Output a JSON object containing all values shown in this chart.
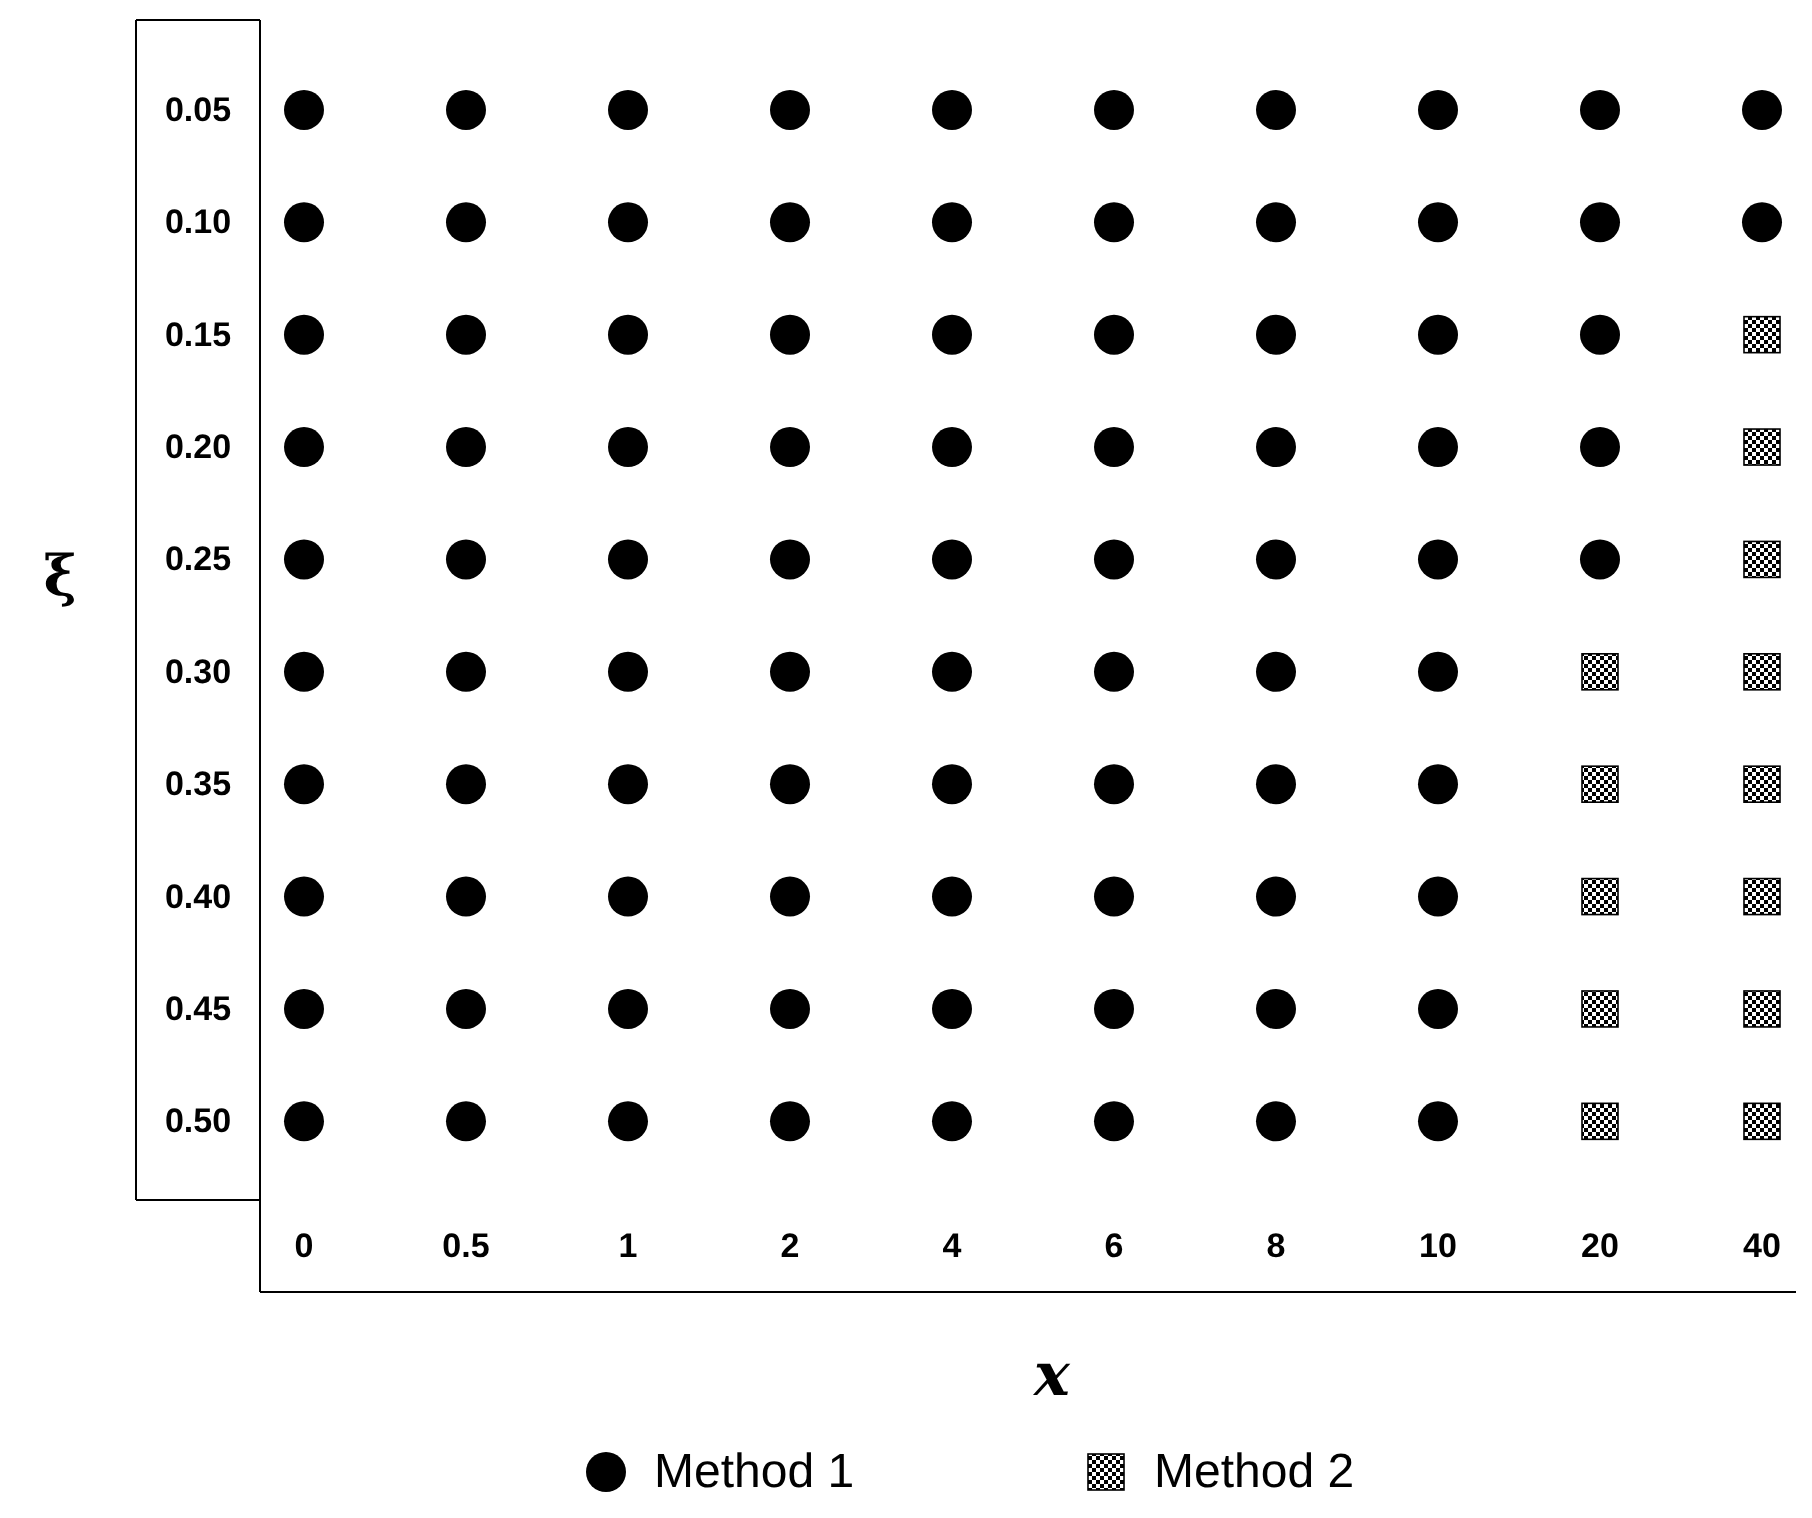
{
  "chart_data": {
    "type": "scatter",
    "xlabel": "x",
    "ylabel": "ξ",
    "categories": [
      "0",
      "0.5",
      "1",
      "2",
      "4",
      "6",
      "8",
      "10",
      "20",
      "40"
    ],
    "ylim": [
      0.535,
      0.01
    ],
    "yticks": [
      {
        "value": 0.05,
        "label": "0.05"
      },
      {
        "value": 0.1,
        "label": "0.10"
      },
      {
        "value": 0.15,
        "label": "0.15"
      },
      {
        "value": 0.2,
        "label": "0.20"
      },
      {
        "value": 0.25,
        "label": "0.25"
      },
      {
        "value": 0.3,
        "label": "0.30"
      },
      {
        "value": 0.35,
        "label": "0.35"
      },
      {
        "value": 0.4,
        "label": "0.40"
      },
      {
        "value": 0.45,
        "label": "0.45"
      },
      {
        "value": 0.5,
        "label": "0.50"
      }
    ],
    "legend": "bottom",
    "grid": false,
    "series": [
      {
        "name": "Method 1",
        "color": "#000000",
        "marker": "circle",
        "x": [
          "0",
          "0",
          "0",
          "0",
          "0",
          "0",
          "0",
          "0",
          "0",
          "0",
          "0.5",
          "0.5",
          "0.5",
          "0.5",
          "0.5",
          "0.5",
          "0.5",
          "0.5",
          "0.5",
          "0.5",
          "1",
          "1",
          "1",
          "1",
          "1",
          "1",
          "1",
          "1",
          "1",
          "1",
          "2",
          "2",
          "2",
          "2",
          "2",
          "2",
          "2",
          "2",
          "2",
          "2",
          "4",
          "4",
          "4",
          "4",
          "4",
          "4",
          "4",
          "4",
          "4",
          "4",
          "6",
          "6",
          "6",
          "6",
          "6",
          "6",
          "6",
          "6",
          "6",
          "6",
          "8",
          "8",
          "8",
          "8",
          "8",
          "8",
          "8",
          "8",
          "8",
          "8",
          "10",
          "10",
          "10",
          "10",
          "10",
          "10",
          "10",
          "10",
          "10",
          "10",
          "20",
          "20",
          "20",
          "20",
          "20",
          "40",
          "40"
        ],
        "values": [
          0.05,
          0.1,
          0.15,
          0.2,
          0.25,
          0.3,
          0.35,
          0.4,
          0.45,
          0.5,
          0.05,
          0.1,
          0.15,
          0.2,
          0.25,
          0.3,
          0.35,
          0.4,
          0.45,
          0.5,
          0.05,
          0.1,
          0.15,
          0.2,
          0.25,
          0.3,
          0.35,
          0.4,
          0.45,
          0.5,
          0.05,
          0.1,
          0.15,
          0.2,
          0.25,
          0.3,
          0.35,
          0.4,
          0.45,
          0.5,
          0.05,
          0.1,
          0.15,
          0.2,
          0.25,
          0.3,
          0.35,
          0.4,
          0.45,
          0.5,
          0.05,
          0.1,
          0.15,
          0.2,
          0.25,
          0.3,
          0.35,
          0.4,
          0.45,
          0.5,
          0.05,
          0.1,
          0.15,
          0.2,
          0.25,
          0.3,
          0.35,
          0.4,
          0.45,
          0.5,
          0.05,
          0.1,
          0.15,
          0.2,
          0.25,
          0.3,
          0.35,
          0.4,
          0.45,
          0.5,
          0.05,
          0.1,
          0.15,
          0.2,
          0.25,
          0.05,
          0.1
        ]
      },
      {
        "name": "Method 2",
        "color": "#000000",
        "marker": "square",
        "x": [
          "20",
          "20",
          "20",
          "20",
          "20",
          "40",
          "40",
          "40",
          "40",
          "40",
          "40",
          "40",
          "40"
        ],
        "values": [
          0.3,
          0.35,
          0.4,
          0.45,
          0.5,
          0.15,
          0.2,
          0.25,
          0.3,
          0.35,
          0.4,
          0.45,
          0.5
        ]
      }
    ]
  }
}
